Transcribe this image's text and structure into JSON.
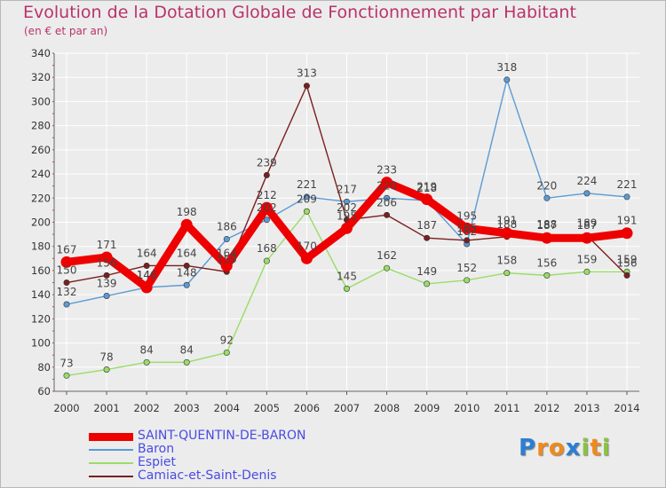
{
  "header": {
    "title": "Evolution de la Dotation Globale de Fonctionnement par Habitant",
    "subtitle": "(en € et par an)"
  },
  "chart_data": {
    "type": "line",
    "title": "Evolution de la Dotation Globale de Fonctionnement par Habitant",
    "subtitle": "(en € et par an)",
    "xlabel": "",
    "ylabel": "",
    "x": [
      2000,
      2001,
      2002,
      2003,
      2004,
      2005,
      2006,
      2007,
      2008,
      2009,
      2010,
      2011,
      2012,
      2013,
      2014
    ],
    "ylim": [
      60,
      340
    ],
    "yticks": [
      60,
      80,
      100,
      120,
      140,
      160,
      180,
      200,
      220,
      240,
      260,
      280,
      300,
      320,
      340
    ],
    "grid": true,
    "legend_position": "bottom-left",
    "series": [
      {
        "name": "SAINT-QUENTIN-DE-BARON",
        "color": "#ee0000",
        "values": [
          167,
          171,
          146,
          198,
          164,
          212,
          170,
          195,
          233,
          219,
          195,
          191,
          187,
          187,
          191
        ]
      },
      {
        "name": "Baron",
        "color": "#5b9bd5",
        "values": [
          132,
          139,
          146,
          148,
          186,
          202,
          221,
          217,
          220,
          218,
          182,
          318,
          220,
          224,
          221
        ]
      },
      {
        "name": "Espiet",
        "color": "#99dd66",
        "values": [
          73,
          78,
          84,
          84,
          92,
          168,
          209,
          145,
          162,
          149,
          152,
          158,
          156,
          159,
          159
        ]
      },
      {
        "name": "Camiac-et-Saint-Denis",
        "color": "#7a1f1f",
        "values": [
          150,
          156,
          164,
          164,
          159,
          239,
          313,
          202,
          206,
          187,
          185,
          188,
          188,
          189,
          156
        ]
      }
    ]
  },
  "logo": {
    "letters": [
      "P",
      "r",
      "o",
      "x",
      "i",
      "t",
      "i"
    ],
    "colors": [
      "#2a7fd4",
      "#f08a1c",
      "#f08a1c",
      "#2a7fd4",
      "#8ac43f",
      "#f08a1c",
      "#8ac43f"
    ]
  }
}
